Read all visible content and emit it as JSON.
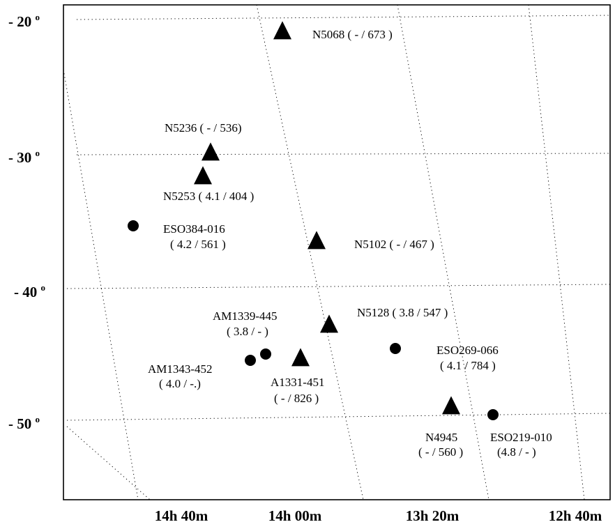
{
  "chart_data": {
    "type": "scatter",
    "x_ticks": [
      "14h 40m",
      "14h 00m",
      "13h 20m",
      "12h 40m"
    ],
    "y_ticks": [
      {
        "label": "- 20",
        "sup": "o"
      },
      {
        "label": "- 30",
        "sup": "o"
      },
      {
        "label": "- 40",
        "sup": "o"
      },
      {
        "label": "- 50",
        "sup": "o"
      }
    ],
    "grid": "dotted",
    "legend": "none",
    "points": [
      {
        "lines": [
          "N5068 ( - / 673 )"
        ],
        "ra": "13h 19m",
        "dec": -21.1,
        "marker": "triangle"
      },
      {
        "lines": [
          "N5236 ( - / 536)"
        ],
        "ra": "13h 37m",
        "dec": -29.9,
        "marker": "triangle"
      },
      {
        "lines": [
          "N5253 ( 4.1 / 404 )"
        ],
        "ra": "13h 40m",
        "dec": -31.6,
        "marker": "triangle"
      },
      {
        "lines": [
          "ESO384-016",
          "( 4.2 / 561 )"
        ],
        "ra": "13h 57m",
        "dec": -35.4,
        "marker": "circle"
      },
      {
        "lines": [
          "N5102 ( - / 467 )"
        ],
        "ra": "13h 22m",
        "dec": -36.6,
        "marker": "triangle"
      },
      {
        "lines": [
          "N5128 ( 3.8 / 547 )"
        ],
        "ra": "13h 25m",
        "dec": -43.0,
        "marker": "triangle"
      },
      {
        "lines": [
          "AM1339-445",
          "( 3.8 / - )"
        ],
        "ra": "13h 42m",
        "dec": -45.0,
        "marker": "circle"
      },
      {
        "lines": [
          "AM1343-452",
          "( 4.0 / -.)"
        ],
        "ra": "13h 46m",
        "dec": -45.2,
        "marker": "circle"
      },
      {
        "lines": [
          "A1331-451",
          "( - / 826 )"
        ],
        "ra": "13h 34m",
        "dec": -45.3,
        "marker": "triangle"
      },
      {
        "lines": [
          "ESO269-066",
          "( 4.1 / 784 )"
        ],
        "ra": "13h 13m",
        "dec": -44.9,
        "marker": "circle"
      },
      {
        "lines": [
          "N4945",
          "( - / 560 )"
        ],
        "ra": "13h 05m",
        "dec": -49.5,
        "marker": "triangle"
      },
      {
        "lines": [
          "ESO219-010",
          "(4.8 / - )"
        ],
        "ra": "12h 57m",
        "dec": -49.6,
        "marker": "circle"
      }
    ]
  }
}
